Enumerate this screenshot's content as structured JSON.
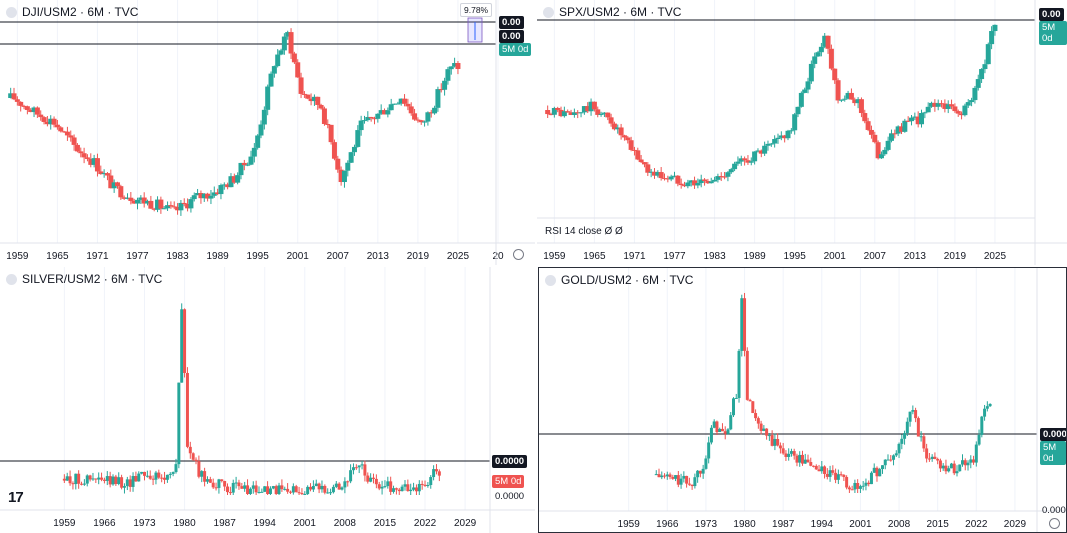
{
  "panels": [
    {
      "id": "dji",
      "title": "DJI/USM2 · 6M · TVC",
      "price_tags": [
        "0.00",
        "0.00"
      ],
      "countdown": "5M 0d",
      "measure_label": "9.78%",
      "x_ticks": [
        "1959",
        "1965",
        "1971",
        "1977",
        "1983",
        "1989",
        "1995",
        "2001",
        "2007",
        "2013",
        "2019",
        "2025",
        "20"
      ],
      "color": "#26a69a"
    },
    {
      "id": "spx",
      "title": "SPX/USM2 · 6M · TVC",
      "price_tags": [
        "0.00"
      ],
      "countdown": "5M 0d",
      "indicator": "RSI 14 close  Ø  Ø",
      "x_ticks": [
        "1959",
        "1965",
        "1971",
        "1977",
        "1983",
        "1989",
        "1995",
        "2001",
        "2007",
        "2013",
        "2019",
        "2025"
      ]
    },
    {
      "id": "silver",
      "title": "SILVER/USM2 · 6M · TVC",
      "price_tags": [
        "0.0000"
      ],
      "countdown": "5M 0d",
      "lower_value": "0.0000",
      "x_ticks": [
        "1959",
        "1966",
        "1973",
        "1980",
        "1987",
        "1994",
        "2001",
        "2008",
        "2015",
        "2022",
        "2029"
      ]
    },
    {
      "id": "gold",
      "title": "GOLD/USM2 · 6M · TVC",
      "price_tags": [
        "0.000"
      ],
      "countdown": "5M 0d",
      "lower_value": "0.000",
      "x_ticks": [
        "1959",
        "1966",
        "1973",
        "1980",
        "1987",
        "1994",
        "2001",
        "2008",
        "2015",
        "2022",
        "2029"
      ]
    }
  ],
  "colors": {
    "up": "#26a69a",
    "down": "#ef5350",
    "line": "#131722",
    "grid": "#f0f3fa"
  },
  "chart_data": [
    {
      "type": "candlestick",
      "title": "DJI/USM2 · 6M · TVC",
      "x": [
        1959,
        1962,
        1965,
        1968,
        1971,
        1974,
        1977,
        1980,
        1983,
        1986,
        1989,
        1992,
        1995,
        1998,
        2000,
        2002,
        2005,
        2008,
        2009,
        2011,
        2014,
        2017,
        2020,
        2022,
        2024,
        2025
      ],
      "y": [
        0.62,
        0.55,
        0.5,
        0.38,
        0.3,
        0.17,
        0.12,
        0.09,
        0.05,
        0.12,
        0.15,
        0.22,
        0.36,
        0.8,
        0.94,
        0.65,
        0.58,
        0.22,
        0.3,
        0.48,
        0.55,
        0.63,
        0.48,
        0.6,
        0.75,
        0.78
      ]
    },
    {
      "type": "candlestick",
      "title": "SPX/USM2 · 6M · TVC",
      "x": [
        1959,
        1962,
        1965,
        1968,
        1971,
        1974,
        1977,
        1980,
        1983,
        1986,
        1989,
        1992,
        1995,
        1998,
        2000,
        2002,
        2005,
        2008,
        2009,
        2011,
        2014,
        2017,
        2020,
        2022,
        2024,
        2025
      ],
      "y": [
        0.5,
        0.47,
        0.52,
        0.44,
        0.28,
        0.15,
        0.12,
        0.1,
        0.1,
        0.18,
        0.24,
        0.3,
        0.4,
        0.74,
        0.92,
        0.58,
        0.55,
        0.25,
        0.3,
        0.4,
        0.45,
        0.55,
        0.48,
        0.55,
        0.78,
        0.95
      ]
    },
    {
      "type": "candlestick",
      "title": "SILVER/USM2 · 6M · TVC",
      "x": [
        1959,
        1966,
        1971,
        1973,
        1975,
        1977,
        1979,
        1980,
        1981,
        1983,
        1987,
        1994,
        2001,
        2008,
        2011,
        2013,
        2018,
        2022,
        2024
      ],
      "y": [
        0.08,
        0.07,
        0.06,
        0.12,
        0.09,
        0.08,
        0.15,
        0.92,
        0.25,
        0.1,
        0.04,
        0.02,
        0.02,
        0.05,
        0.15,
        0.06,
        0.03,
        0.04,
        0.1
      ]
    },
    {
      "type": "candlestick",
      "title": "GOLD/USM2 · 6M · TVC",
      "x": [
        1959,
        1966,
        1971,
        1973,
        1975,
        1977,
        1979,
        1980,
        1981,
        1983,
        1987,
        1994,
        2001,
        2008,
        2011,
        2013,
        2018,
        2022,
        2024
      ],
      "y": [
        0.12,
        0.08,
        0.05,
        0.15,
        0.35,
        0.28,
        0.5,
        0.95,
        0.48,
        0.32,
        0.22,
        0.12,
        0.02,
        0.2,
        0.42,
        0.2,
        0.12,
        0.18,
        0.42
      ]
    }
  ]
}
